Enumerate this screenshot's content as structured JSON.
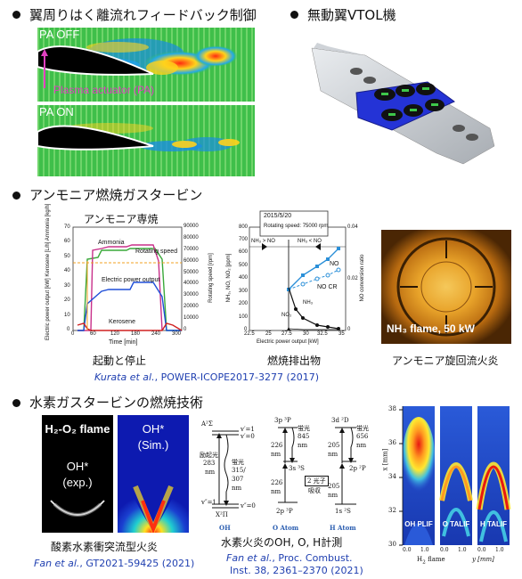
{
  "section1": {
    "left_heading": "翼周りはく離流れフィードバック制御",
    "right_heading": "無動翼VTOL機",
    "pa_off": "PA OFF",
    "pa_on": "PA ON",
    "actuator_label": "Plasma actuator (PA)"
  },
  "section2": {
    "heading": "アンモニア燃焼ガスタービン",
    "chart1": {
      "title": "アンモニア専焼",
      "caption": "起動と停止",
      "series_labels": [
        "Ammonia",
        "Rotating speed",
        "Electric power output",
        "Kerosene"
      ],
      "y_left_label": "Electric power output [kW] Kerosene [L/h] Ammonia [kg/h]",
      "y_right_label": "Rotating speed [rpm]",
      "x_label": "Time [min]",
      "x_ticks": [
        "0",
        "60",
        "120",
        "180",
        "240",
        "300"
      ],
      "y_left_ticks": [
        "0",
        "10",
        "20",
        "30",
        "40",
        "50",
        "60",
        "70"
      ],
      "y_right_ticks": [
        "0",
        "10000",
        "20000",
        "30000",
        "40000",
        "50000",
        "60000",
        "70000",
        "80000",
        "90000"
      ]
    },
    "chart2": {
      "box_date": "2015/5/20",
      "box_speed": "Rotating speed: 75000 rpm",
      "region_left": "NH₃ > NO",
      "region_right": "NH₃ < NO",
      "series_labels": [
        "NO",
        "NO CR",
        "NO₂",
        "NH₃"
      ],
      "y_left_label": "NH₃, NO, NO₂ [ppm]",
      "y_right_label": "NO conversion ratio",
      "x_label": "Electric power output [kW]",
      "x_ticks": [
        "22.5",
        "25",
        "27.5",
        "30",
        "32.5",
        "35"
      ],
      "y_left_ticks": [
        "0",
        "100",
        "200",
        "300",
        "400",
        "500",
        "600",
        "700",
        "800"
      ],
      "y_right_ticks": [
        "0",
        "0.02",
        "0.04"
      ],
      "caption": "燃焼排出物"
    },
    "flame_label": "NH₃ flame, 50 kW",
    "flame_caption": "アンモニア旋回流火炎",
    "reference_authors": "Kurata et al.",
    "reference_rest": ", POWER-ICOPE2017-3277 (2017)"
  },
  "section3": {
    "heading": "水素ガスタービンの燃焼技術",
    "panel1_title": "H₂-O₂ flame",
    "panel1_sub": "OH*",
    "panel1_sub2": "(exp.)",
    "panel2_sub": "OH*",
    "panel2_sub2": "(Sim.)",
    "caption1": "酸素水素衝突流型火炎",
    "ref1_authors": "Fan et al.",
    "ref1_rest": ", GT2021-59425 (2021)",
    "caption2": "水素火炎のOH, O, H計測",
    "ref2_authors": "Fan et al.",
    "ref2_rest": ", Proc. Combust.",
    "ref2_line2": "Inst. 38, 2361–2370 (2021)",
    "diagram": {
      "oh_label": "OH",
      "o_label": "O Atom",
      "h_label": "H Atom",
      "oh_upper": "A²Σ",
      "oh_lower": "X²Π",
      "oh_v1": "v′=1",
      "oh_v0": "v′=0",
      "oh_vpp1": "v″=1",
      "oh_vpp0": "v″=0",
      "oh_exc": "励起光",
      "oh_exc_nm": "283",
      "oh_fl": "蛍光",
      "oh_fl_nm": "315/",
      "oh_fl_nm2": "307",
      "o_3p": "3p ³P",
      "o_3s": "3s ³S",
      "o_2p": "2p ³P",
      "o_226": "226",
      "o_fl": "蛍光",
      "o_845": "845",
      "h_3d": "3d ²D",
      "h_2p": "2p ²P",
      "h_1s": "1s ²S",
      "h_205": "205",
      "h_fl": "蛍光",
      "h_656": "656",
      "two_photon": "2 光子",
      "absorb": "吸収",
      "nm": "nm"
    },
    "plif": {
      "y_ticks": [
        "30",
        "32",
        "34",
        "36",
        "38"
      ],
      "y_label": "x [mm]",
      "x_ticks": [
        "0.0",
        "1.0"
      ],
      "x_label_a": "H",
      "x_label_b": "flame",
      "x_label_y": "y [mm]",
      "panels": [
        "OH PLIF",
        "O TALIF",
        "H TALIF"
      ]
    }
  }
}
